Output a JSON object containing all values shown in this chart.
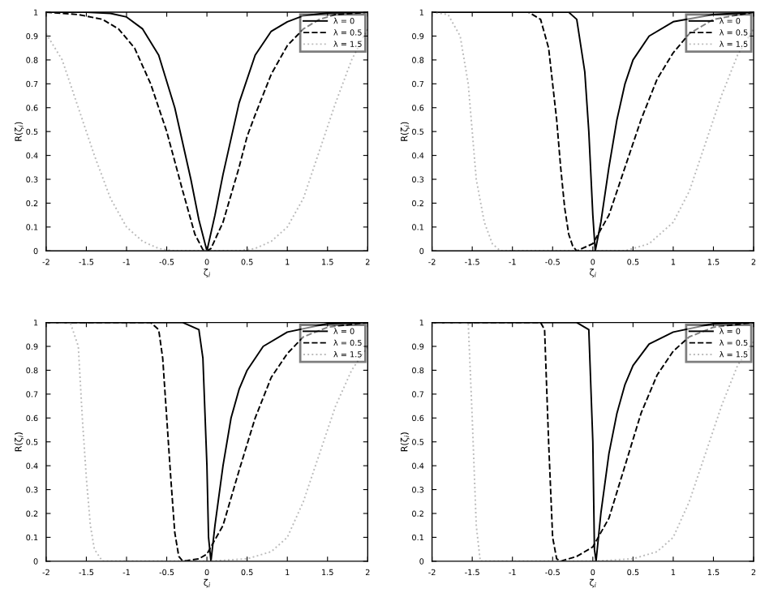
{
  "chart_data": [
    {
      "type": "line",
      "xlabel": "ζ$_{i}$",
      "ylabel": "R(ζ$_{i}$)",
      "xlim": [
        -2,
        2
      ],
      "ylim": [
        0,
        1
      ],
      "xticks": [
        -2,
        -1.5,
        -1,
        -0.5,
        0,
        0.5,
        1,
        1.5,
        2
      ],
      "yticks": [
        0,
        0.1,
        0.2,
        0.3,
        0.4,
        0.5,
        0.6,
        0.7,
        0.8,
        0.9,
        1
      ],
      "grid": false,
      "legend": "top right",
      "series": [
        {
          "name": "λ = 0",
          "color": "#000000",
          "line_style": "solid",
          "x": [
            -2,
            -1.5,
            -1.2,
            -1,
            -0.8,
            -0.6,
            -0.4,
            -0.2,
            -0.1,
            0,
            0.1,
            0.2,
            0.4,
            0.6,
            0.8,
            1,
            1.2,
            1.5,
            2
          ],
          "values": [
            1,
            1,
            0.995,
            0.98,
            0.93,
            0.82,
            0.6,
            0.3,
            0.13,
            0,
            0.15,
            0.32,
            0.62,
            0.82,
            0.92,
            0.96,
            0.985,
            0.997,
            1
          ]
        },
        {
          "name": "λ = 0.5",
          "color": "#000000",
          "line_style": "dashed",
          "x": [
            -2,
            -1.6,
            -1.3,
            -1.1,
            -0.9,
            -0.7,
            -0.5,
            -0.3,
            -0.15,
            -0.05,
            0,
            0.05,
            0.2,
            0.4,
            0.5,
            0.6,
            0.8,
            1,
            1.2,
            1.4,
            1.6,
            2
          ],
          "values": [
            1,
            0.99,
            0.97,
            0.93,
            0.85,
            0.7,
            0.5,
            0.25,
            0.07,
            0.005,
            0,
            0.01,
            0.12,
            0.35,
            0.48,
            0.57,
            0.74,
            0.86,
            0.93,
            0.97,
            0.99,
            1
          ]
        },
        {
          "name": "λ = 1.5",
          "color": "#bbbbbb",
          "line_style": "dotted",
          "x": [
            -2,
            -1.8,
            -1.6,
            -1.4,
            -1.2,
            -1,
            -0.8,
            -0.6,
            -0.4,
            0,
            0.4,
            0.6,
            0.8,
            1,
            1.2,
            1.4,
            1.6,
            1.8,
            2
          ],
          "values": [
            0.91,
            0.8,
            0.6,
            0.4,
            0.22,
            0.1,
            0.04,
            0.01,
            0,
            0,
            0,
            0.01,
            0.04,
            0.1,
            0.22,
            0.42,
            0.62,
            0.8,
            0.93
          ]
        }
      ]
    },
    {
      "type": "line",
      "xlabel": "ζ$_{i}$",
      "ylabel": "R(ζ$_{i}$)",
      "xlim": [
        -2,
        2
      ],
      "ylim": [
        0,
        1
      ],
      "xticks": [
        -2,
        -1.5,
        -1,
        -0.5,
        0,
        0.5,
        1,
        1.5,
        2
      ],
      "yticks": [
        0,
        0.1,
        0.2,
        0.3,
        0.4,
        0.5,
        0.6,
        0.7,
        0.8,
        0.9,
        1
      ],
      "grid": false,
      "legend": "top right",
      "series": [
        {
          "name": "λ = 0",
          "color": "#000000",
          "line_style": "solid",
          "x": [
            -2,
            -0.3,
            -0.2,
            -0.1,
            -0.05,
            0,
            0.03,
            0.1,
            0.2,
            0.3,
            0.4,
            0.5,
            0.7,
            1,
            1.5,
            2
          ],
          "values": [
            1,
            1,
            0.97,
            0.75,
            0.5,
            0.15,
            0,
            0.12,
            0.35,
            0.55,
            0.7,
            0.8,
            0.9,
            0.96,
            0.99,
            1
          ]
        },
        {
          "name": "λ = 0.5",
          "color": "#000000",
          "line_style": "dashed",
          "x": [
            -2,
            -0.8,
            -0.65,
            -0.55,
            -0.5,
            -0.45,
            -0.4,
            -0.35,
            -0.3,
            -0.25,
            -0.2,
            0,
            0.2,
            0.4,
            0.6,
            0.8,
            1,
            1.2,
            1.5,
            2
          ],
          "values": [
            1,
            1,
            0.97,
            0.85,
            0.7,
            0.55,
            0.35,
            0.18,
            0.07,
            0.02,
            0,
            0.03,
            0.15,
            0.35,
            0.55,
            0.72,
            0.83,
            0.91,
            0.97,
            1
          ]
        },
        {
          "name": "λ = 1.5",
          "color": "#bbbbbb",
          "line_style": "dotted",
          "x": [
            -2,
            -1.8,
            -1.65,
            -1.55,
            -1.5,
            -1.45,
            -1.35,
            -1.25,
            -1.15,
            0,
            0.4,
            0.7,
            1,
            1.2,
            1.4,
            1.6,
            1.8,
            2
          ],
          "values": [
            1,
            0.99,
            0.9,
            0.7,
            0.5,
            0.3,
            0.12,
            0.03,
            0,
            0,
            0,
            0.03,
            0.12,
            0.25,
            0.45,
            0.65,
            0.82,
            0.93
          ]
        }
      ]
    },
    {
      "type": "line",
      "xlabel": "ζ$_{i}$",
      "ylabel": "R(ζ$_{i}$)",
      "xlim": [
        -2,
        2
      ],
      "ylim": [
        0,
        1
      ],
      "xticks": [
        -2,
        -1.5,
        -1,
        -0.5,
        0,
        0.5,
        1,
        1.5,
        2
      ],
      "yticks": [
        0,
        0.1,
        0.2,
        0.3,
        0.4,
        0.5,
        0.6,
        0.7,
        0.8,
        0.9,
        1
      ],
      "grid": false,
      "legend": "top right",
      "series": [
        {
          "name": "λ = 0",
          "color": "#000000",
          "line_style": "solid",
          "x": [
            -2,
            -0.3,
            -0.1,
            -0.05,
            0,
            0.02,
            0.05,
            0.1,
            0.2,
            0.3,
            0.4,
            0.5,
            0.7,
            1,
            1.5,
            2
          ],
          "values": [
            1,
            1,
            0.97,
            0.85,
            0.4,
            0.1,
            0,
            0.15,
            0.4,
            0.6,
            0.72,
            0.8,
            0.9,
            0.96,
            0.995,
            1
          ]
        },
        {
          "name": "λ = 0.5",
          "color": "#000000",
          "line_style": "dashed",
          "x": [
            -2,
            -0.7,
            -0.6,
            -0.55,
            -0.5,
            -0.45,
            -0.4,
            -0.35,
            -0.3,
            -0.1,
            0,
            0.2,
            0.4,
            0.6,
            0.8,
            1,
            1.2,
            1.5,
            2
          ],
          "values": [
            1,
            1,
            0.97,
            0.85,
            0.6,
            0.35,
            0.12,
            0.02,
            0,
            0.01,
            0.03,
            0.15,
            0.38,
            0.6,
            0.77,
            0.87,
            0.94,
            0.98,
            1
          ]
        },
        {
          "name": "λ = 1.5",
          "color": "#bbbbbb",
          "line_style": "dotted",
          "x": [
            -2,
            -1.7,
            -1.6,
            -1.55,
            -1.5,
            -1.45,
            -1.4,
            -1.3,
            0,
            0.5,
            0.8,
            1,
            1.2,
            1.4,
            1.6,
            1.8,
            2
          ],
          "values": [
            1,
            1,
            0.9,
            0.6,
            0.35,
            0.15,
            0.05,
            0,
            0,
            0.01,
            0.04,
            0.1,
            0.25,
            0.45,
            0.65,
            0.8,
            0.9
          ]
        }
      ]
    },
    {
      "type": "line",
      "xlabel": "ζ$_{i}$",
      "ylabel": "R(ζ$_{i}$)",
      "xlim": [
        -2,
        2
      ],
      "ylim": [
        0,
        1
      ],
      "xticks": [
        -2,
        -1.5,
        -1,
        -0.5,
        0,
        0.5,
        1,
        1.5,
        2
      ],
      "yticks": [
        0,
        0.1,
        0.2,
        0.3,
        0.4,
        0.5,
        0.6,
        0.7,
        0.8,
        0.9,
        1
      ],
      "grid": false,
      "legend": "top right",
      "series": [
        {
          "name": "λ = 0",
          "color": "#000000",
          "line_style": "solid",
          "x": [
            -2,
            -0.2,
            -0.05,
            0,
            0.02,
            0.04,
            0.1,
            0.2,
            0.3,
            0.4,
            0.5,
            0.7,
            1,
            1.5,
            2
          ],
          "values": [
            1,
            1,
            0.97,
            0.5,
            0.05,
            0,
            0.2,
            0.45,
            0.62,
            0.74,
            0.82,
            0.91,
            0.96,
            0.995,
            1
          ]
        },
        {
          "name": "λ = 0.5",
          "color": "#000000",
          "line_style": "dashed",
          "x": [
            -2,
            -0.65,
            -0.6,
            -0.55,
            -0.5,
            -0.45,
            -0.4,
            -0.2,
            0,
            0.2,
            0.4,
            0.6,
            0.8,
            1,
            1.2,
            1.5,
            2
          ],
          "values": [
            1,
            1,
            0.97,
            0.5,
            0.1,
            0.01,
            0,
            0.02,
            0.06,
            0.18,
            0.4,
            0.62,
            0.78,
            0.88,
            0.94,
            0.98,
            1
          ]
        },
        {
          "name": "λ = 1.5",
          "color": "#bbbbbb",
          "line_style": "dotted",
          "x": [
            -2,
            -1.55,
            -1.5,
            -1.45,
            -1.4,
            0,
            0.5,
            0.8,
            1,
            1.2,
            1.4,
            1.6,
            1.8,
            2
          ],
          "values": [
            1,
            1,
            0.6,
            0.15,
            0,
            0,
            0.01,
            0.04,
            0.1,
            0.25,
            0.45,
            0.65,
            0.82,
            0.92
          ]
        }
      ]
    }
  ]
}
